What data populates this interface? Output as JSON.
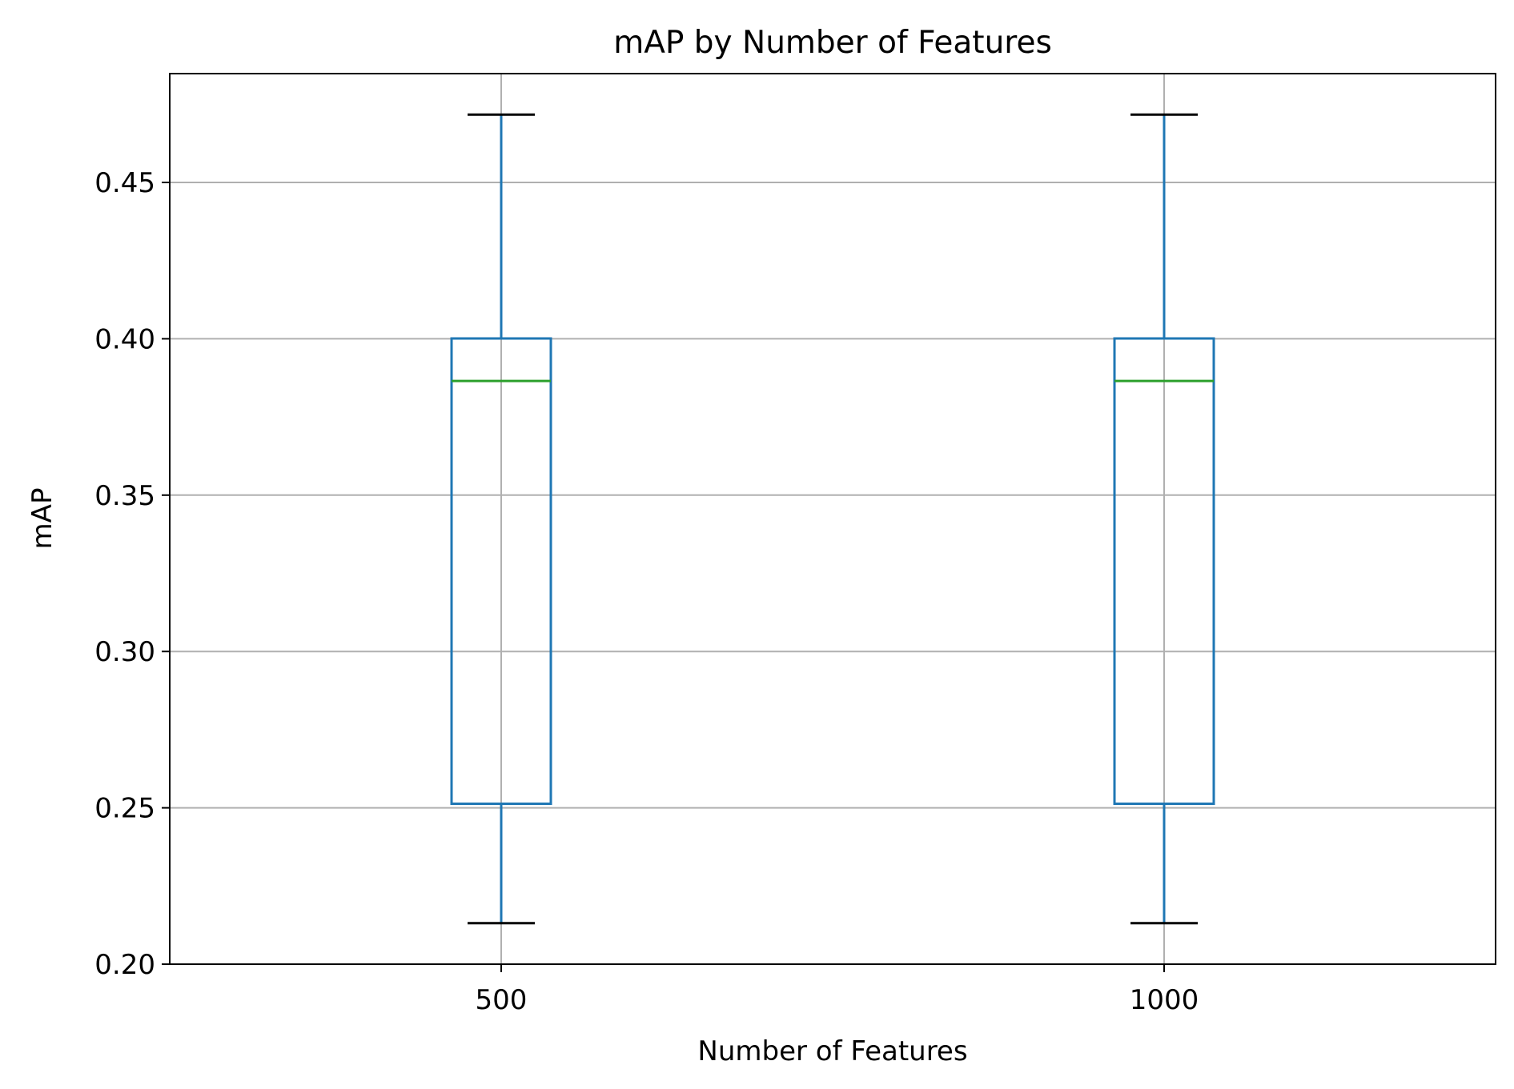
{
  "chart_data": {
    "type": "box",
    "title": "mAP by Number of Features",
    "xlabel": "Number of Features",
    "ylabel": "mAP",
    "categories": [
      "500",
      "1000"
    ],
    "boxes": [
      {
        "category": "500",
        "whisker_low": 0.2131,
        "q1": 0.2513,
        "median": 0.3865,
        "q3": 0.4001,
        "whisker_high": 0.4717
      },
      {
        "category": "1000",
        "whisker_low": 0.2131,
        "q1": 0.2513,
        "median": 0.3865,
        "q3": 0.4001,
        "whisker_high": 0.4717
      }
    ],
    "ylim": [
      0.2,
      0.4848
    ],
    "yticks": [
      "0.20",
      "0.25",
      "0.30",
      "0.35",
      "0.40",
      "0.45"
    ],
    "ytick_values": [
      0.2,
      0.25,
      0.3,
      0.35,
      0.4,
      0.45
    ],
    "grid": true,
    "colors": {
      "box": "#1f77b4",
      "median": "#2ca02c",
      "cap": "#000000",
      "grid": "#b0b0b0",
      "axes": "#000000"
    }
  }
}
